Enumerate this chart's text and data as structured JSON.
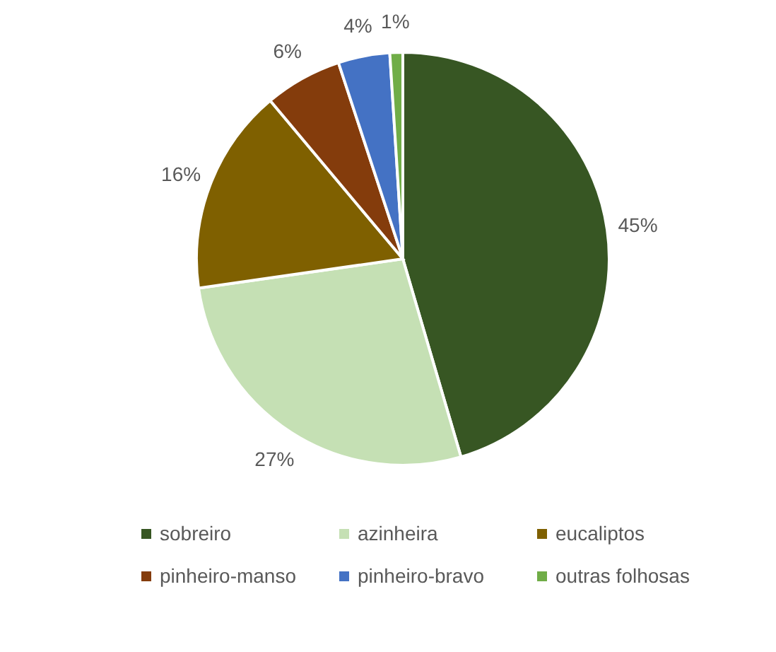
{
  "chart_data": {
    "type": "pie",
    "categories": [
      "sobreiro",
      "azinheira",
      "eucaliptos",
      "pinheiro-manso",
      "pinheiro-bravo",
      "outras folhosas"
    ],
    "values": [
      45,
      27,
      16,
      6,
      4,
      1
    ],
    "value_labels": [
      "45%",
      "27%",
      "16%",
      "6%",
      "4%",
      "1%"
    ],
    "colors": [
      "#375623",
      "#c5e0b4",
      "#7f6000",
      "#843c0c",
      "#4472c4",
      "#70ad47"
    ],
    "legend": "bottom"
  }
}
